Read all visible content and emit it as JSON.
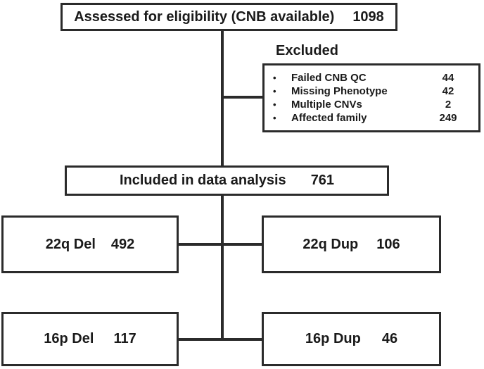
{
  "nodes": {
    "assessed": {
      "label": "Assessed for eligibility (CNB available)",
      "count": "1098"
    },
    "excluded": {
      "title": "Excluded",
      "bullet": "•",
      "items": [
        {
          "label": "Failed CNB QC",
          "count": "44"
        },
        {
          "label": "Missing Phenotype",
          "count": "42"
        },
        {
          "label": "Multiple CNVs",
          "count": "2"
        },
        {
          "label": "Affected family",
          "count": "249"
        }
      ]
    },
    "included": {
      "label": "Included in data analysis",
      "count": "761"
    },
    "del22q": {
      "label": "22q Del",
      "count": "492"
    },
    "dup22q": {
      "label": "22q Dup",
      "count": "106"
    },
    "del16p": {
      "label": "16p Del",
      "count": "117"
    },
    "dup16p": {
      "label": "16p Dup",
      "count": "46"
    }
  },
  "colors": {
    "line": "#2b2b2b",
    "text": "#1a1a1a",
    "background": "#ffffff"
  }
}
